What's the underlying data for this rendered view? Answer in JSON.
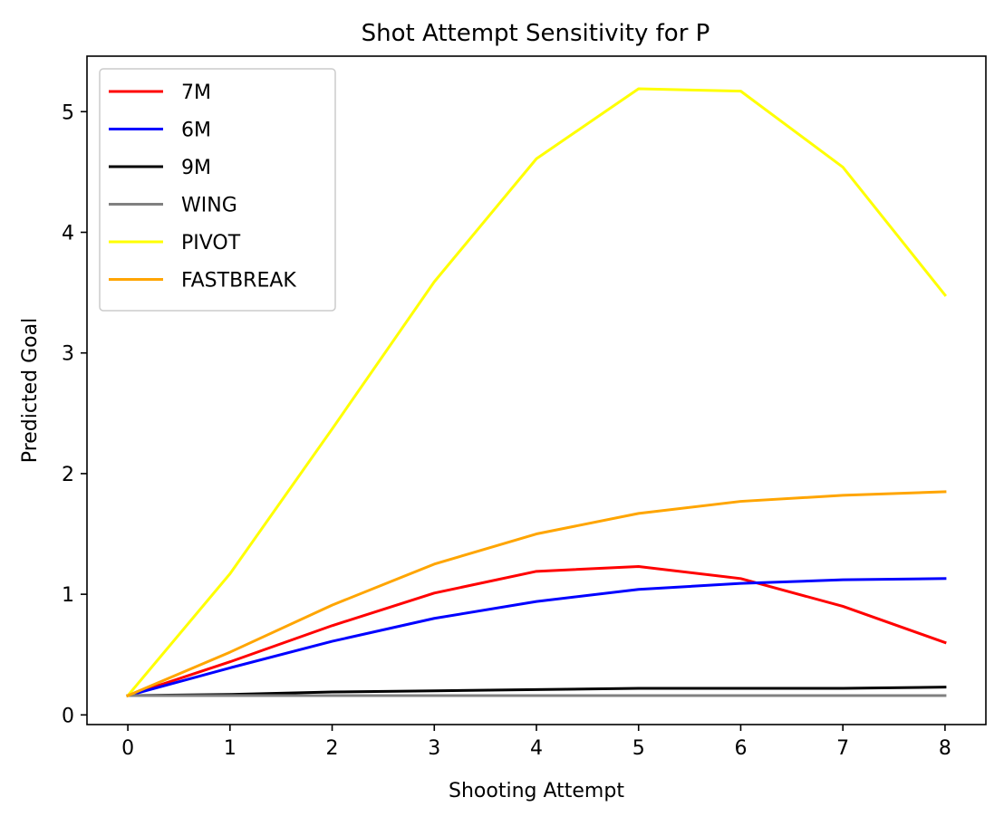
{
  "chart_data": {
    "type": "line",
    "title": "Shot Attempt Sensitivity for P",
    "xlabel": "Shooting Attempt",
    "ylabel": "Predicted Goal",
    "x": [
      0,
      1,
      2,
      3,
      4,
      5,
      6,
      7,
      8
    ],
    "xticks": [
      0,
      1,
      2,
      3,
      4,
      5,
      6,
      7,
      8
    ],
    "yticks": [
      0,
      1,
      2,
      3,
      4,
      5
    ],
    "xlim": [
      -0.4,
      8.4
    ],
    "ylim": [
      -0.08,
      5.46
    ],
    "grid": false,
    "legend_position": "upper-left",
    "series": [
      {
        "name": "7M",
        "color": "#ff0000",
        "values": [
          0.16,
          0.44,
          0.74,
          1.01,
          1.19,
          1.23,
          1.13,
          0.9,
          0.6
        ]
      },
      {
        "name": "6M",
        "color": "#0000ff",
        "values": [
          0.16,
          0.39,
          0.61,
          0.8,
          0.94,
          1.04,
          1.09,
          1.12,
          1.13
        ]
      },
      {
        "name": "9M",
        "color": "#000000",
        "values": [
          0.16,
          0.17,
          0.19,
          0.2,
          0.21,
          0.22,
          0.22,
          0.22,
          0.23
        ]
      },
      {
        "name": "WING",
        "color": "#808080",
        "values": [
          0.16,
          0.16,
          0.16,
          0.16,
          0.16,
          0.16,
          0.16,
          0.16,
          0.16
        ]
      },
      {
        "name": "PIVOT",
        "color": "#ffff00",
        "values": [
          0.16,
          1.17,
          2.37,
          3.59,
          4.61,
          5.19,
          5.17,
          4.54,
          3.48
        ]
      },
      {
        "name": "FASTBREAK",
        "color": "#ffa500",
        "values": [
          0.16,
          0.52,
          0.91,
          1.25,
          1.5,
          1.67,
          1.77,
          1.82,
          1.85
        ]
      }
    ]
  }
}
